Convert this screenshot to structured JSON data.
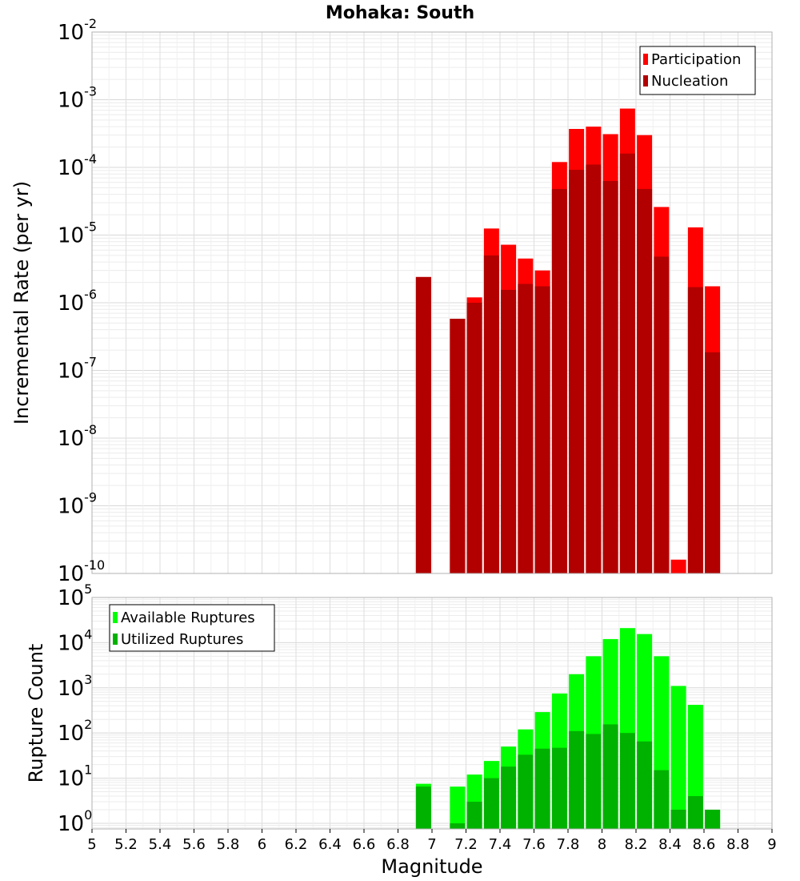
{
  "title": "Mohaka: South",
  "xlabel": "Magnitude",
  "colors": {
    "participation": "#ff0000",
    "nucleation": "#b20000",
    "available": "#00ff00",
    "utilized": "#00b200"
  },
  "chart_data": [
    {
      "type": "bar",
      "scale": "log",
      "ylabel": "Incremental Rate (per yr)",
      "ylim": [
        1e-10,
        0.01
      ],
      "xlim": [
        5,
        9
      ],
      "grid": true,
      "legend_position": "top-right",
      "series": [
        {
          "name": "Participation",
          "points": [
            {
              "x": 6.95,
              "y": 2.4e-06
            },
            {
              "x": 7.15,
              "y": 5.8e-07
            },
            {
              "x": 7.25,
              "y": 1.2e-06
            },
            {
              "x": 7.35,
              "y": 1.25e-05
            },
            {
              "x": 7.45,
              "y": 7.2e-06
            },
            {
              "x": 7.55,
              "y": 4.5e-06
            },
            {
              "x": 7.65,
              "y": 3e-06
            },
            {
              "x": 7.75,
              "y": 0.00012
            },
            {
              "x": 7.85,
              "y": 0.00037
            },
            {
              "x": 7.95,
              "y": 0.0004
            },
            {
              "x": 8.05,
              "y": 0.00031
            },
            {
              "x": 8.15,
              "y": 0.00074
            },
            {
              "x": 8.25,
              "y": 0.0003
            },
            {
              "x": 8.35,
              "y": 2.6e-05
            },
            {
              "x": 8.45,
              "y": 1.6e-10
            },
            {
              "x": 8.55,
              "y": 1.3e-05
            },
            {
              "x": 8.65,
              "y": 1.75e-06
            }
          ]
        },
        {
          "name": "Nucleation",
          "points": [
            {
              "x": 6.95,
              "y": 2.4e-06
            },
            {
              "x": 7.15,
              "y": 5.8e-07
            },
            {
              "x": 7.25,
              "y": 1e-06
            },
            {
              "x": 7.35,
              "y": 5e-06
            },
            {
              "x": 7.45,
              "y": 1.55e-06
            },
            {
              "x": 7.55,
              "y": 1.9e-06
            },
            {
              "x": 7.65,
              "y": 1.75e-06
            },
            {
              "x": 7.75,
              "y": 4.8e-05
            },
            {
              "x": 7.85,
              "y": 9.2e-05
            },
            {
              "x": 7.95,
              "y": 0.00011
            },
            {
              "x": 8.05,
              "y": 6.3e-05
            },
            {
              "x": 8.15,
              "y": 0.00016
            },
            {
              "x": 8.25,
              "y": 4.8e-05
            },
            {
              "x": 8.35,
              "y": 4.8e-06
            },
            {
              "x": 8.55,
              "y": 1.7e-06
            },
            {
              "x": 8.65,
              "y": 1.85e-07
            }
          ]
        }
      ]
    },
    {
      "type": "bar",
      "scale": "log",
      "ylabel": "Rupture Count",
      "ylim": [
        0.75,
        100000
      ],
      "xlim": [
        5,
        9
      ],
      "grid": true,
      "legend_position": "top-left",
      "series": [
        {
          "name": "Available Ruptures",
          "points": [
            {
              "x": 6.95,
              "y": 7.5
            },
            {
              "x": 7.15,
              "y": 6.5
            },
            {
              "x": 7.25,
              "y": 12
            },
            {
              "x": 7.35,
              "y": 24
            },
            {
              "x": 7.45,
              "y": 50
            },
            {
              "x": 7.55,
              "y": 120
            },
            {
              "x": 7.65,
              "y": 290
            },
            {
              "x": 7.75,
              "y": 750
            },
            {
              "x": 7.85,
              "y": 2000
            },
            {
              "x": 7.95,
              "y": 5000
            },
            {
              "x": 8.05,
              "y": 12000
            },
            {
              "x": 8.15,
              "y": 21000
            },
            {
              "x": 8.25,
              "y": 15500
            },
            {
              "x": 8.35,
              "y": 5000
            },
            {
              "x": 8.45,
              "y": 1100
            },
            {
              "x": 8.55,
              "y": 420
            },
            {
              "x": 8.65,
              "y": 2
            }
          ]
        },
        {
          "name": "Utilized Ruptures",
          "points": [
            {
              "x": 6.95,
              "y": 6.5
            },
            {
              "x": 7.15,
              "y": 1
            },
            {
              "x": 7.25,
              "y": 3
            },
            {
              "x": 7.35,
              "y": 10
            },
            {
              "x": 7.45,
              "y": 18
            },
            {
              "x": 7.55,
              "y": 33
            },
            {
              "x": 7.65,
              "y": 45
            },
            {
              "x": 7.75,
              "y": 47
            },
            {
              "x": 7.85,
              "y": 110
            },
            {
              "x": 7.95,
              "y": 95
            },
            {
              "x": 8.05,
              "y": 155
            },
            {
              "x": 8.15,
              "y": 100
            },
            {
              "x": 8.25,
              "y": 65
            },
            {
              "x": 8.35,
              "y": 15
            },
            {
              "x": 8.45,
              "y": 2
            },
            {
              "x": 8.55,
              "y": 4
            },
            {
              "x": 8.65,
              "y": 2
            }
          ]
        }
      ]
    }
  ]
}
